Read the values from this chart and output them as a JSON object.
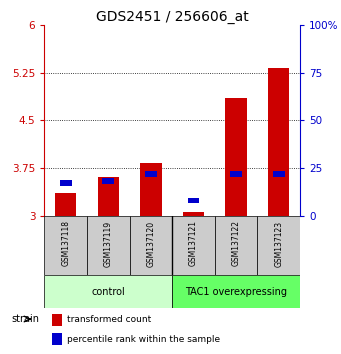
{
  "title": "GDS2451 / 256606_at",
  "samples": [
    "GSM137118",
    "GSM137119",
    "GSM137120",
    "GSM137121",
    "GSM137122",
    "GSM137123"
  ],
  "red_values": [
    3.35,
    3.6,
    3.83,
    3.05,
    4.85,
    5.32
  ],
  "blue_values_pct": [
    17,
    18,
    22,
    8,
    22,
    22
  ],
  "ylim_left": [
    3.0,
    6.0
  ],
  "ylim_right": [
    0,
    100
  ],
  "yticks_left": [
    3.0,
    3.75,
    4.5,
    5.25,
    6.0
  ],
  "yticks_right": [
    0,
    25,
    50,
    75,
    100
  ],
  "ytick_labels_left": [
    "3",
    "3.75",
    "4.5",
    "5.25",
    "6"
  ],
  "ytick_labels_right": [
    "0",
    "25",
    "50",
    "75",
    "100%"
  ],
  "dotted_lines": [
    3.75,
    4.5,
    5.25
  ],
  "groups": [
    {
      "label": "control",
      "indices": [
        0,
        1,
        2
      ],
      "color": "#ccffcc"
    },
    {
      "label": "TAC1 overexpressing",
      "indices": [
        3,
        4,
        5
      ],
      "color": "#66ff66"
    }
  ],
  "bar_width": 0.5,
  "red_color": "#cc0000",
  "blue_color": "#0000cc",
  "bg_color": "#ffffff",
  "tick_color_left": "#cc0000",
  "tick_color_right": "#0000cc",
  "bar_bottom": 3.0,
  "legend_red": "transformed count",
  "legend_blue": "percentile rank within the sample",
  "strain_label": "strain",
  "title_fontsize": 10,
  "tick_fontsize": 7.5,
  "sample_fontsize": 5.5,
  "group_fontsize": 7,
  "legend_fontsize": 6.5
}
